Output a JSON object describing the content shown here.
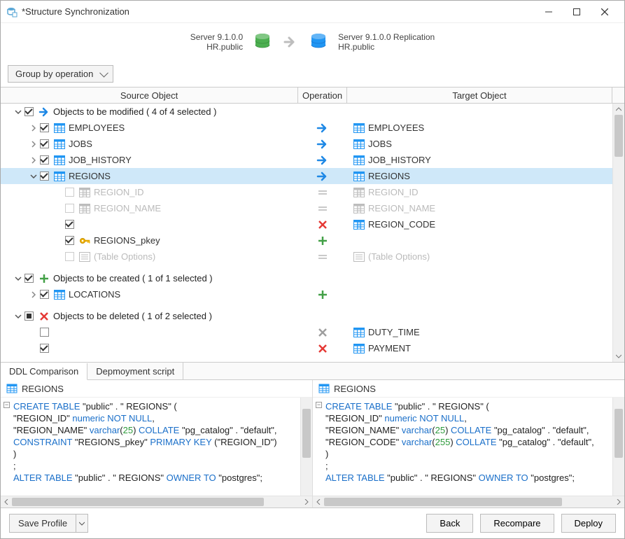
{
  "window": {
    "title": "*Structure Synchronization"
  },
  "header": {
    "source_server": "Server 9.1.0.0",
    "source_db": "HR.public",
    "target_server": "Server 9.1.0.0 Replication",
    "target_db": "HR.public",
    "source_color": "#4caf50",
    "target_color": "#2196f3"
  },
  "toolbar": {
    "group_by": "Group by operation"
  },
  "columns": {
    "source": "Source Object",
    "operation": "Operation",
    "target": "Target Object"
  },
  "colors": {
    "arrow_blue": "#1e88e5",
    "plus_green": "#43a047",
    "x_red": "#e53935",
    "x_gray": "#9e9e9e",
    "equals_gray": "#c9c9c9",
    "table_blue": "#2196f3",
    "table_gray": "#bdbdbd",
    "key_yellow": "#f5b400",
    "selected_bg": "#cfe8f9"
  },
  "groups": [
    {
      "id": "modified",
      "icon": "arrow-right",
      "icon_color": "#1e88e5",
      "label": "Objects to be modified ( 4 of 4 selected )",
      "expanded": true,
      "check": "checked",
      "rows": [
        {
          "exp": "collapsed",
          "check": "checked",
          "src_icon": "table",
          "src": "EMPLOYEES",
          "op": "arrow-blue",
          "tgt_icon": "table",
          "tgt": "EMPLOYEES"
        },
        {
          "exp": "collapsed",
          "check": "checked",
          "src_icon": "table",
          "src": "JOBS",
          "op": "arrow-blue",
          "tgt_icon": "table",
          "tgt": "JOBS"
        },
        {
          "exp": "collapsed",
          "check": "checked",
          "src_icon": "table",
          "src": "JOB_HISTORY",
          "op": "arrow-blue",
          "tgt_icon": "table",
          "tgt": "JOB_HISTORY"
        },
        {
          "exp": "expanded",
          "check": "checked",
          "src_icon": "table",
          "src": "REGIONS",
          "op": "arrow-blue",
          "tgt_icon": "table",
          "tgt": "REGIONS",
          "selected": true,
          "children": [
            {
              "check": "disabled",
              "src_icon": "column-gray",
              "src": "REGION_ID",
              "src_disabled": true,
              "op": "equals",
              "tgt_icon": "column-gray",
              "tgt": "REGION_ID",
              "tgt_disabled": true
            },
            {
              "check": "disabled",
              "src_icon": "column-gray",
              "src": "REGION_NAME",
              "src_disabled": true,
              "op": "equals",
              "tgt_icon": "column-gray",
              "tgt": "REGION_NAME",
              "tgt_disabled": true
            },
            {
              "check": "checked",
              "src_icon": "",
              "src": "",
              "op": "x-red",
              "tgt_icon": "column",
              "tgt": "REGION_CODE"
            },
            {
              "check": "checked",
              "src_icon": "key",
              "src": "REGIONS_pkey",
              "op": "plus-green",
              "tgt_icon": "",
              "tgt": ""
            },
            {
              "check": "disabled",
              "src_icon": "options-gray",
              "src": "(Table Options)",
              "src_disabled": true,
              "op": "equals",
              "tgt_icon": "options-gray",
              "tgt": "(Table Options)",
              "tgt_disabled": true
            }
          ]
        }
      ]
    },
    {
      "id": "created",
      "icon": "plus",
      "icon_color": "#43a047",
      "label": "Objects to be created ( 1 of 1 selected )",
      "expanded": true,
      "check": "checked",
      "rows": [
        {
          "exp": "collapsed",
          "check": "checked",
          "src_icon": "table",
          "src": "LOCATIONS",
          "op": "plus-green",
          "tgt_icon": "",
          "tgt": ""
        }
      ]
    },
    {
      "id": "deleted",
      "icon": "x",
      "icon_color": "#e53935",
      "label": "Objects to be deleted ( 1 of 2 selected )",
      "expanded": true,
      "check": "mixed",
      "rows": [
        {
          "exp": "",
          "check": "unchecked",
          "src_icon": "",
          "src": "",
          "op": "x-gray",
          "tgt_icon": "table",
          "tgt": "DUTY_TIME"
        },
        {
          "exp": "",
          "check": "checked",
          "src_icon": "",
          "src": "",
          "op": "x-red",
          "tgt_icon": "table",
          "tgt": "PAYMENT"
        }
      ]
    }
  ],
  "tabs": {
    "active": "DDL Comparison",
    "other": "Depmoyment script"
  },
  "ddl": {
    "left_title": "REGIONS",
    "right_title": "REGIONS",
    "left_lines": [
      [
        [
          "blue",
          "CREATE TABLE"
        ],
        [
          "black",
          " \"public\" . \" REGIONS\" ("
        ]
      ],
      [
        [
          "black",
          "    \"REGION_ID\" "
        ],
        [
          "blue",
          "numeric NOT NULL"
        ],
        [
          "black",
          ","
        ]
      ],
      [
        [
          "black",
          "    \"REGION_NAME\" "
        ],
        [
          "blue",
          "varchar"
        ],
        [
          "black",
          "("
        ],
        [
          "green",
          "25"
        ],
        [
          "black",
          ") "
        ],
        [
          "blue",
          "COLLATE"
        ],
        [
          "black",
          " \"pg_catalog\" . \"default\","
        ]
      ],
      [
        [
          "black",
          "    "
        ],
        [
          "blue",
          "CONSTRAINT"
        ],
        [
          "black",
          " \"REGIONS_pkey\" "
        ],
        [
          "blue",
          "PRIMARY KEY"
        ],
        [
          "black",
          " (\"REGION_ID\")"
        ]
      ],
      [
        [
          "black",
          ")"
        ]
      ],
      [
        [
          "black",
          ";"
        ]
      ],
      [
        [
          "black",
          " "
        ]
      ],
      [
        [
          "blue",
          "ALTER TABLE"
        ],
        [
          "black",
          " \"public\" . \" REGIONS\" "
        ],
        [
          "blue",
          "OWNER TO"
        ],
        [
          "black",
          " \"postgres\";"
        ]
      ]
    ],
    "right_lines": [
      [
        [
          "blue",
          "CREATE TABLE"
        ],
        [
          "black",
          " \"public\" . \" REGIONS\" ("
        ]
      ],
      [
        [
          "black",
          "    \"REGION_ID\" "
        ],
        [
          "blue",
          "numeric NOT NULL"
        ],
        [
          "black",
          ","
        ]
      ],
      [
        [
          "black",
          "    \"REGION_NAME\" "
        ],
        [
          "blue",
          "varchar"
        ],
        [
          "black",
          "("
        ],
        [
          "green",
          "25"
        ],
        [
          "black",
          ") "
        ],
        [
          "blue",
          "COLLATE"
        ],
        [
          "black",
          " \"pg_catalog\" . \"default\","
        ]
      ],
      [
        [
          "black",
          "    \"REGION_CODE\" "
        ],
        [
          "blue",
          "varchar"
        ],
        [
          "black",
          "("
        ],
        [
          "green",
          "255"
        ],
        [
          "black",
          ") "
        ],
        [
          "blue",
          "COLLATE"
        ],
        [
          "black",
          " \"pg_catalog\" . \"default\","
        ]
      ],
      [
        [
          "black",
          ")"
        ]
      ],
      [
        [
          "black",
          ";"
        ]
      ],
      [
        [
          "black",
          " "
        ]
      ],
      [
        [
          "blue",
          "ALTER TABLE"
        ],
        [
          "black",
          " \"public\" . \" REGIONS\" "
        ],
        [
          "blue",
          "OWNER TO"
        ],
        [
          "black",
          " \"postgres\";"
        ]
      ]
    ]
  },
  "footer": {
    "save_profile": "Save Profile",
    "back": "Back",
    "recompare": "Recompare",
    "deploy": "Deploy"
  }
}
